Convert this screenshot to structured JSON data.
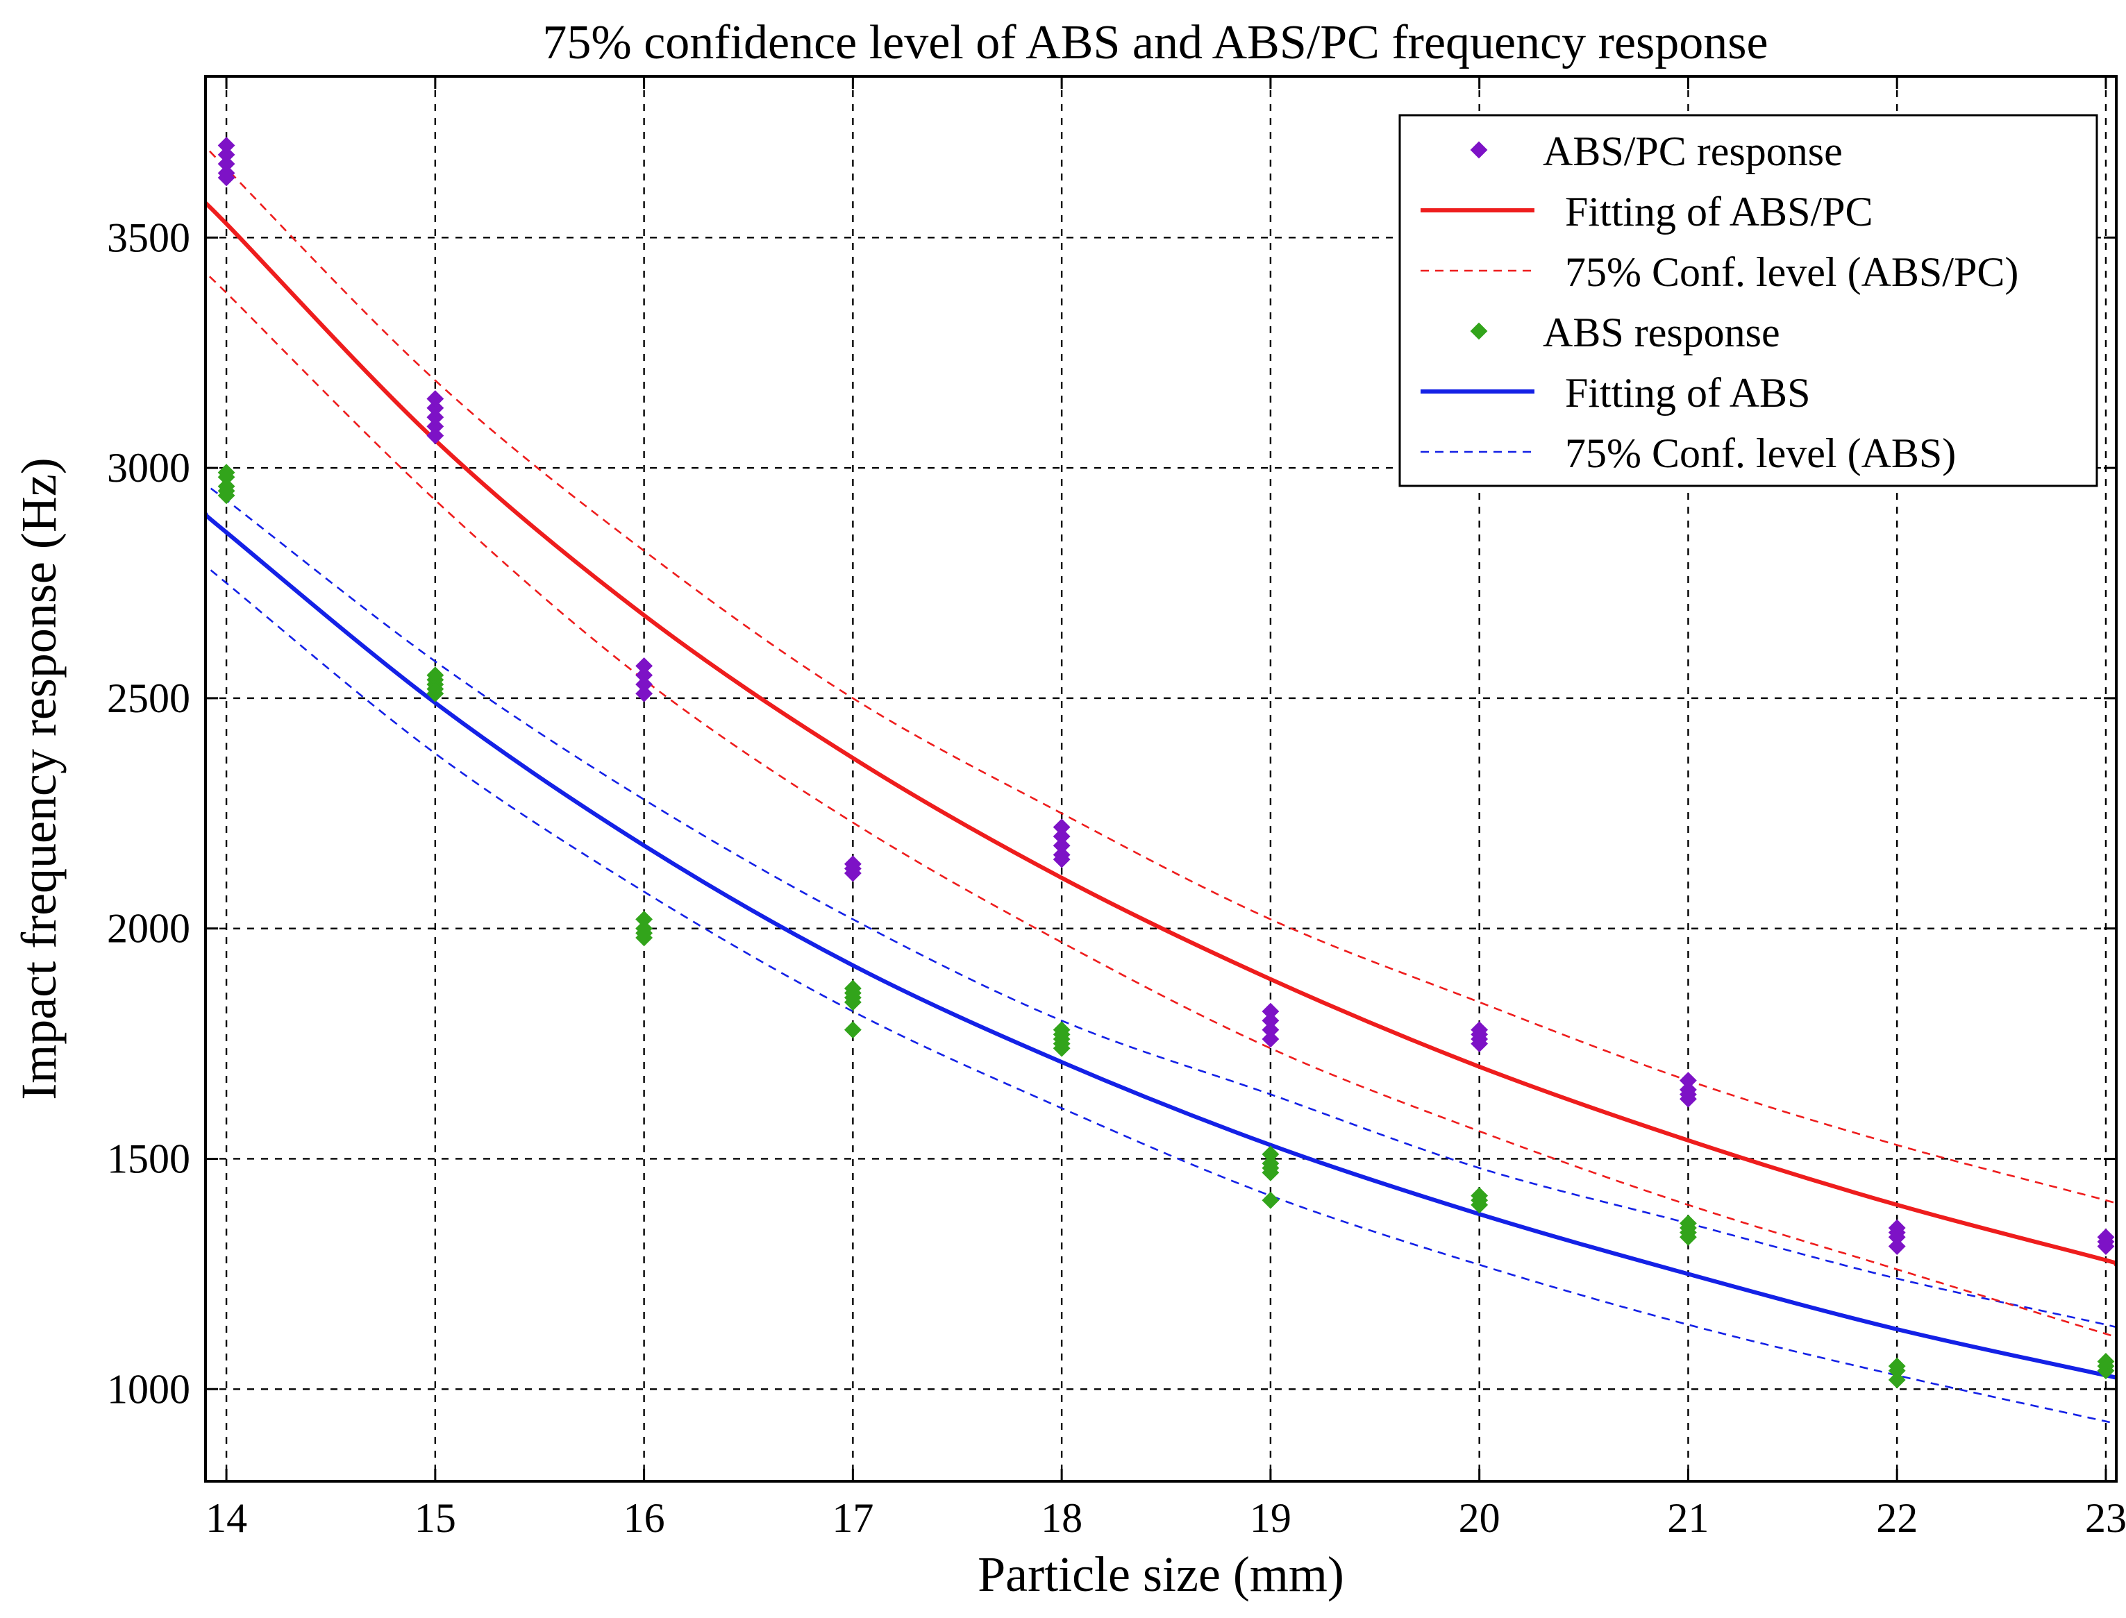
{
  "chart_data": {
    "type": "scatter",
    "title": "75% confidence level of ABS and ABS/PC frequency response",
    "xlabel": "Particle size (mm)",
    "ylabel": "Impact frequency response (Hz)",
    "xlim": [
      13.9,
      23.05
    ],
    "ylim": [
      800,
      3850
    ],
    "xticks": [
      14,
      15,
      16,
      17,
      18,
      19,
      20,
      21,
      22,
      23
    ],
    "yticks": [
      1000,
      1500,
      2000,
      2500,
      3000,
      3500
    ],
    "grid": true,
    "legend_position": "top-right",
    "colors": {
      "abs_pc": "#7d12c6",
      "abs": "#32a41b",
      "fit_abs_pc": "#ee1d1d",
      "fit_abs": "#1421e6"
    },
    "series": [
      {
        "name": "ABS/PC response",
        "kind": "points",
        "color": "#7d12c6",
        "x": [
          14,
          14,
          14,
          14,
          14,
          15,
          15,
          15,
          15,
          15,
          16,
          16,
          16,
          16,
          17,
          17,
          17,
          18,
          18,
          18,
          18,
          18,
          19,
          19,
          19,
          19,
          20,
          20,
          20,
          20,
          21,
          21,
          21,
          21,
          22,
          22,
          22,
          22,
          23,
          23,
          23
        ],
        "y": [
          3640,
          3660,
          3680,
          3630,
          3700,
          3090,
          3110,
          3130,
          3150,
          3070,
          2530,
          2550,
          2570,
          2510,
          2120,
          2140,
          2130,
          2160,
          2180,
          2200,
          2150,
          2220,
          1760,
          1780,
          1800,
          1820,
          1750,
          1770,
          1780,
          1760,
          1630,
          1650,
          1670,
          1640,
          1310,
          1330,
          1350,
          1340,
          1310,
          1330,
          1320
        ]
      },
      {
        "name": "Fitting of ABS/PC",
        "kind": "fit",
        "color": "#ee1d1d",
        "x": [
          13.9,
          14,
          15,
          16,
          17,
          18,
          19,
          20,
          21,
          22,
          23,
          23.05
        ],
        "y": [
          3570,
          3530,
          3060,
          2680,
          2370,
          2110,
          1890,
          1700,
          1540,
          1400,
          1280,
          1270
        ]
      },
      {
        "name": "75% Conf. level (ABS/PC)",
        "kind": "band_upper",
        "color": "#ee1d1d",
        "x": [
          13.9,
          14,
          15,
          16,
          17,
          18,
          19,
          20,
          21,
          22,
          23,
          23.05
        ],
        "y": [
          3700,
          3650,
          3190,
          2820,
          2500,
          2250,
          2020,
          1840,
          1670,
          1530,
          1410,
          1400
        ]
      },
      {
        "name": "75% Conf. level (ABS/PC)",
        "kind": "band_lower",
        "color": "#ee1d1d",
        "x": [
          13.9,
          14,
          15,
          16,
          17,
          18,
          19,
          20,
          21,
          22,
          23,
          23.05
        ],
        "y": [
          3420,
          3380,
          2930,
          2540,
          2230,
          1970,
          1740,
          1560,
          1400,
          1260,
          1120,
          1115
        ]
      },
      {
        "name": "ABS response",
        "kind": "points",
        "color": "#32a41b",
        "x": [
          14,
          14,
          14,
          14,
          14,
          15,
          15,
          15,
          15,
          15,
          16,
          16,
          16,
          16,
          17,
          17,
          17,
          17,
          17,
          18,
          18,
          18,
          18,
          18,
          19,
          19,
          19,
          19,
          19,
          20,
          20,
          20,
          21,
          21,
          21,
          21,
          22,
          22,
          22,
          23,
          23,
          23
        ],
        "y": [
          2940,
          2960,
          2980,
          2990,
          2950,
          2510,
          2530,
          2540,
          2550,
          2520,
          1980,
          2000,
          2020,
          1990,
          1780,
          1840,
          1860,
          1870,
          1850,
          1750,
          1760,
          1780,
          1770,
          1740,
          1410,
          1470,
          1490,
          1510,
          1480,
          1400,
          1410,
          1420,
          1330,
          1350,
          1360,
          1340,
          1020,
          1040,
          1050,
          1040,
          1050,
          1060
        ]
      },
      {
        "name": "Fitting of ABS",
        "kind": "fit",
        "color": "#1421e6",
        "x": [
          13.9,
          14,
          15,
          16,
          17,
          18,
          19,
          20,
          21,
          22,
          23,
          23.05
        ],
        "y": [
          2900,
          2860,
          2490,
          2180,
          1920,
          1710,
          1530,
          1380,
          1250,
          1130,
          1030,
          1025
        ]
      },
      {
        "name": "75% Conf. level (ABS)",
        "kind": "band_upper",
        "color": "#1421e6",
        "x": [
          13.9,
          14,
          15,
          16,
          17,
          18,
          19,
          20,
          21,
          22,
          23,
          23.05
        ],
        "y": [
          2960,
          2930,
          2580,
          2280,
          2020,
          1800,
          1640,
          1480,
          1360,
          1240,
          1140,
          1130
        ]
      },
      {
        "name": "75% Conf. level (ABS)",
        "kind": "band_lower",
        "color": "#1421e6",
        "x": [
          13.9,
          14,
          15,
          16,
          17,
          18,
          19,
          20,
          21,
          22,
          23,
          23.05
        ],
        "y": [
          2790,
          2750,
          2380,
          2080,
          1820,
          1610,
          1420,
          1270,
          1140,
          1030,
          930,
          925
        ]
      }
    ],
    "legend": [
      {
        "label": "ABS/PC response",
        "style": "marker",
        "color": "#7d12c6"
      },
      {
        "label": "Fitting of ABS/PC",
        "style": "solid",
        "color": "#ee1d1d"
      },
      {
        "label": "75% Conf. level (ABS/PC)",
        "style": "dashed",
        "color": "#ee1d1d"
      },
      {
        "label": "ABS response",
        "style": "marker",
        "color": "#32a41b"
      },
      {
        "label": "Fitting of ABS",
        "style": "solid",
        "color": "#1421e6"
      },
      {
        "label": "75% Conf. level (ABS)",
        "style": "dashed",
        "color": "#1421e6"
      }
    ]
  }
}
